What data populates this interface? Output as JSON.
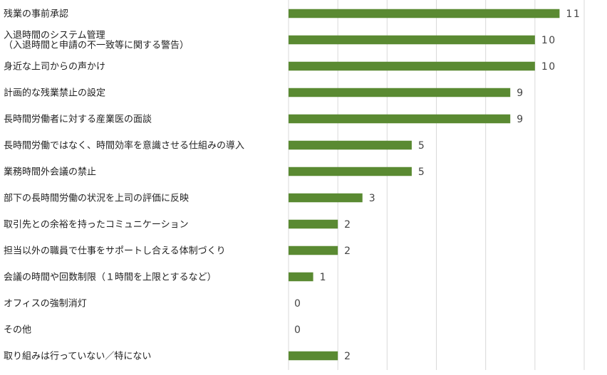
{
  "chart_data": {
    "type": "bar",
    "orientation": "horizontal",
    "categories": [
      [
        "残業の事前承認"
      ],
      [
        "入退時間のシステム管理",
        "（入退時間と申請の不一致等に関する警告）"
      ],
      [
        "身近な上司からの声かけ"
      ],
      [
        "計画的な残業禁止の設定"
      ],
      [
        "長時間労働者に対する産業医の面談"
      ],
      [
        "長時間労働ではなく、時間効率を意識させる仕組みの導入"
      ],
      [
        "業務時間外会議の禁止"
      ],
      [
        "部下の長時間労働の状況を上司の評価に反映"
      ],
      [
        "取引先との余裕を持ったコミュニケーション"
      ],
      [
        "担当以外の職員で仕事をサポートし合える体制づくり"
      ],
      [
        "会議の時間や回数制限（１時間を上限とするなど）"
      ],
      [
        "オフィスの強制消灯"
      ],
      [
        "その他"
      ],
      [
        "取り組みは行っていない／特にない"
      ]
    ],
    "values": [
      11,
      10,
      10,
      9,
      9,
      5,
      5,
      3,
      2,
      2,
      1,
      0,
      0,
      2
    ],
    "value_labels": [
      "11",
      "10",
      "10",
      "9",
      "9",
      "5",
      "5",
      "3",
      "2",
      "2",
      "1",
      "0",
      "0",
      "2"
    ],
    "xlim": [
      0,
      12
    ],
    "x_gridlines": [
      0,
      2,
      4,
      6,
      8,
      10,
      12
    ],
    "grid": true,
    "legend": "none",
    "colors": {
      "bar": "#5a8a32",
      "grid": "#d9d9d9",
      "label": "#222222",
      "value": "#444444"
    }
  }
}
